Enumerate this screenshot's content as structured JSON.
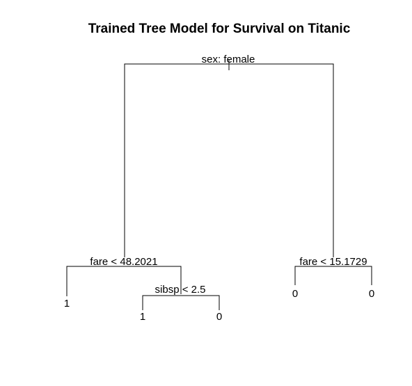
{
  "title": "Trained Tree Model for Survival on Titanic",
  "tree": {
    "root": {
      "split": "sex: female"
    },
    "left": {
      "split": "fare < 48.2021"
    },
    "left_left": {
      "leaf": "1"
    },
    "left_right": {
      "split": "sibsp < 2.5"
    },
    "left_right_left": {
      "leaf": "1"
    },
    "left_right_right": {
      "leaf": "0"
    },
    "right": {
      "split": "fare < 15.1729"
    },
    "right_left": {
      "leaf": "0"
    },
    "right_right": {
      "leaf": "0"
    }
  }
}
